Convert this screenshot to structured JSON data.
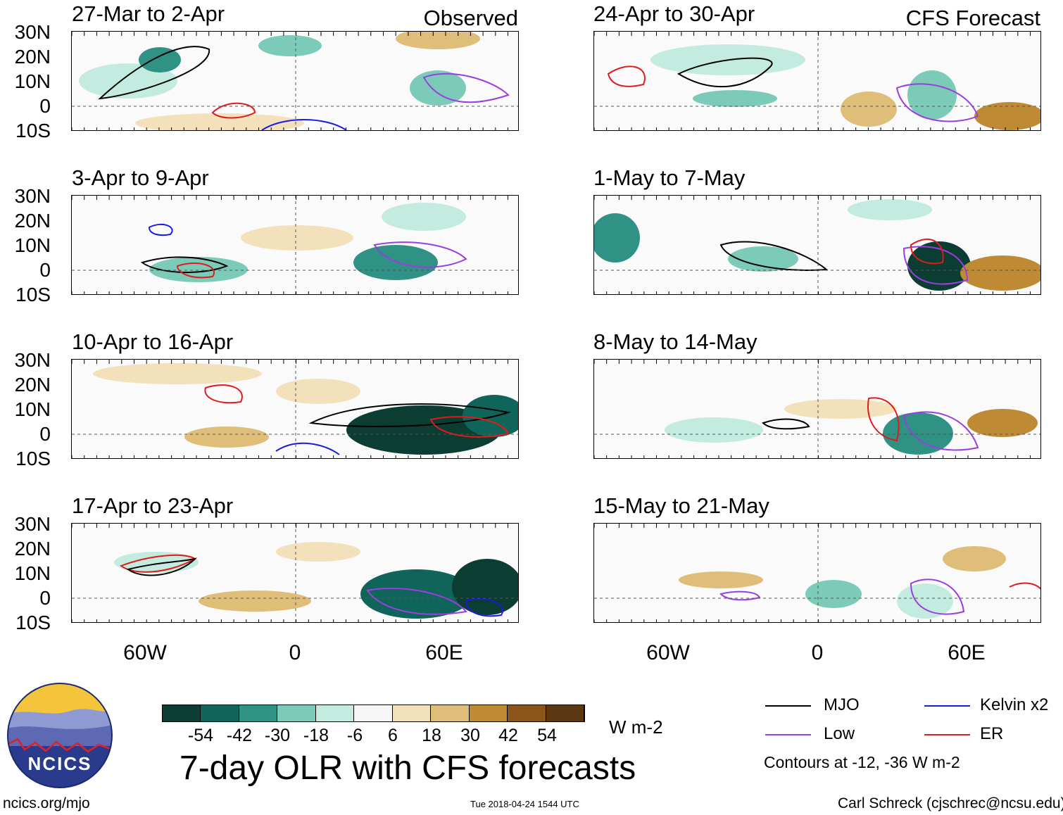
{
  "columns": {
    "left": {
      "label": "Observed"
    },
    "right": {
      "label": "CFS Forecast"
    }
  },
  "panels": [
    {
      "title": "27-Mar to 2-Apr"
    },
    {
      "title": "24-Apr to 30-Apr"
    },
    {
      "title": "3-Apr to 9-Apr"
    },
    {
      "title": "1-May to 7-May"
    },
    {
      "title": "10-Apr to 16-Apr"
    },
    {
      "title": "8-May to 14-May"
    },
    {
      "title": "17-Apr to 23-Apr"
    },
    {
      "title": "15-May to 21-May"
    }
  ],
  "lat_labels": [
    "30N",
    "20N",
    "10N",
    "0",
    "10S"
  ],
  "lon_labels": [
    "60W",
    "0",
    "60E"
  ],
  "colorbar": {
    "labels": [
      "-54",
      "-42",
      "-30",
      "-18",
      "-6",
      "6",
      "18",
      "30",
      "42",
      "54"
    ],
    "colors": [
      "#0b3d33",
      "#10655a",
      "#2f9285",
      "#7ccbb9",
      "#c4ebe0",
      "#f7f7f7",
      "#f3e1bc",
      "#dfbe7a",
      "#be8a34",
      "#8b5418",
      "#5b3812"
    ],
    "unit": "W m-2"
  },
  "main_title": "7-day OLR with CFS forecasts",
  "legend": {
    "items": [
      {
        "label": "MJO",
        "color": "#000000"
      },
      {
        "label": "Kelvin x2",
        "color": "#1a1ae6"
      },
      {
        "label": "Low",
        "color": "#9b3ee0"
      },
      {
        "label": "ER",
        "color": "#e01b1b"
      }
    ],
    "note": "Contours at -12, -36 W m-2"
  },
  "logo": {
    "text": "NCICS"
  },
  "footer": {
    "left": "ncics.org/mjo",
    "center": "Tue 2018-04-24 1544 UTC",
    "right": "Carl Schreck (cjschrec@ncsu.edu)"
  }
}
